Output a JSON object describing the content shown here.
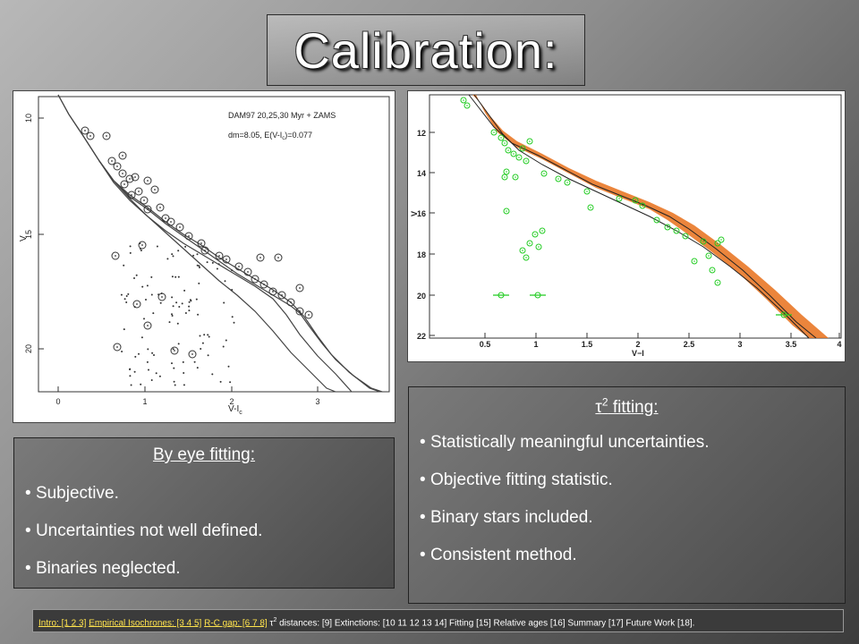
{
  "title": "Calibration:",
  "plot_left": {
    "legend_line1": "DAM97 20,25,30 Myr + ZAMS",
    "legend_line2": "dm=8.05, E(V-I",
    "legend_line2_sub": "c",
    "legend_line2_end": ")=0.077",
    "xlabel": "V-I",
    "xlabel_sub": "c",
    "ylabel": "V",
    "xticks": [
      "0",
      "1",
      "2",
      "3"
    ],
    "yticks": [
      "10",
      "15",
      "20"
    ]
  },
  "plot_right": {
    "xlabel": "V−I",
    "ylabel": "V",
    "xticks": [
      "0.5",
      "1",
      "1.5",
      "2",
      "2.5",
      "3",
      "3.5",
      "4"
    ],
    "yticks": [
      "12",
      "14",
      "16",
      "18",
      "20",
      "22"
    ]
  },
  "panel_eye": {
    "heading": "By eye fitting:",
    "items": [
      "Subjective.",
      "Uncertainties not well defined.",
      "Binaries neglected."
    ]
  },
  "panel_tau": {
    "heading_symbol": "τ",
    "heading_sup": "2",
    "heading_text": " fitting:",
    "items": [
      "Statistically meaningful uncertainties.",
      "Objective fitting statistic.",
      "Binary stars included.",
      "Consistent method."
    ]
  },
  "nav": {
    "link1": "Intro: [1 2 3]",
    "link2": "Empirical Isochrones: [3 4 5]",
    "link3": "R-C gap: [6 7 8]",
    "tau": "τ",
    "tau_sup": "2",
    "rest": " distances: [9] Extinctions: [10 11 12 13 14] Fitting [15] Relative ages [16] Summary [17] Future Work [18]."
  },
  "colors": {
    "green_point": "#22cc22",
    "orange_band": "#e8701a",
    "nav_link": "#ffe34d"
  }
}
